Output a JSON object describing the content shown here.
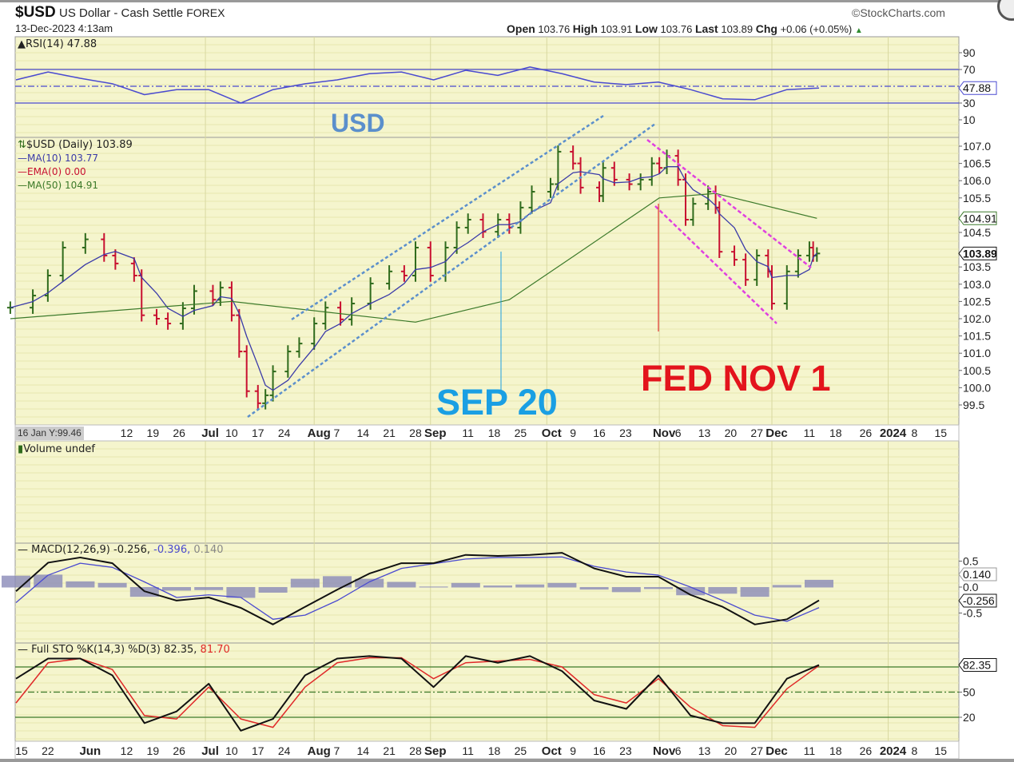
{
  "header": {
    "symbol": "$USD",
    "name": "US Dollar - Cash Settle",
    "exchange": "FOREX",
    "datetime": "13-Dec-2023 4:13am",
    "copyright": "©StockCharts.com",
    "open_label": "Open",
    "open": "103.76",
    "high_label": "High",
    "high": "103.91",
    "low_label": "Low",
    "low": "103.76",
    "last_label": "Last",
    "last": "103.89",
    "chg_label": "Chg",
    "chg": "+0.06 (+0.05%)",
    "chg_icon": "triangle-up-icon"
  },
  "annotations": {
    "usd": "USD",
    "sep20": "SEP 20",
    "fed": "FED NOV 1"
  },
  "colors": {
    "panel_bg": "#f5f5cd",
    "up": "#2f6b1c",
    "down": "#c81030",
    "ma10": "#3a3aa8",
    "ma50": "#3c7a2a",
    "rsi": "#4a4ad0",
    "macd": "#111111",
    "signal": "#4a4ad0",
    "hist": "#8a8ab8",
    "sto_k": "#111111",
    "sto_d": "#e02828",
    "sep_color": "#1a9fe3",
    "fed_color": "#e3141c",
    "channel_up": "#5b8fcc",
    "channel_down": "#e040e0"
  },
  "panels": {
    "rsi_label": "RSI(14) 47.88",
    "price_label": "$USD (Daily) 103.89",
    "ma10_label": "MA(10) 103.77",
    "ema_label": "EMA(0) 0.00",
    "ma50_label": "MA(50) 104.91",
    "crosshair_label": "16 Jan Y:99.46",
    "volume_label": "Volume undef",
    "macd_label": "MACD(12,26,9) -0.256,",
    "macd_signal_label": " -0.396,",
    "macd_hist_label": " 0.140",
    "sto_label": "Full STO %K(14,3) %D(3) 82.35,",
    "sto_d_label": " 81.70"
  },
  "chart_data": [
    {
      "type": "ohlc",
      "title": "$USD (Daily)",
      "ylim": [
        99.2,
        107.3
      ],
      "yticks": [
        "107.0",
        "106.5",
        "106.0",
        "105.5",
        "104.5",
        "103.5",
        "103.0",
        "102.5",
        "102.0",
        "101.5",
        "101.0",
        "100.5",
        "100.0",
        "99.5"
      ],
      "last_value": "103.89",
      "ma50_value": "104.91",
      "dates": [
        "2023-05-12",
        "2023-05-18",
        "2023-05-22",
        "2023-05-26",
        "2023-06-01",
        "2023-06-06",
        "2023-06-09",
        "2023-06-14",
        "2023-06-16",
        "2023-06-20",
        "2023-06-23",
        "2023-06-27",
        "2023-06-30",
        "2023-07-05",
        "2023-07-07",
        "2023-07-10",
        "2023-07-12",
        "2023-07-14",
        "2023-07-17",
        "2023-07-19",
        "2023-07-21",
        "2023-07-25",
        "2023-07-28",
        "2023-08-01",
        "2023-08-04",
        "2023-08-08",
        "2023-08-11",
        "2023-08-16",
        "2023-08-21",
        "2023-08-25",
        "2023-08-28",
        "2023-09-01",
        "2023-09-05",
        "2023-09-08",
        "2023-09-11",
        "2023-09-15",
        "2023-09-19",
        "2023-09-22",
        "2023-09-25",
        "2023-09-28",
        "2023-10-03",
        "2023-10-05",
        "2023-10-09",
        "2023-10-11",
        "2023-10-16",
        "2023-10-17",
        "2023-10-20",
        "2023-10-24",
        "2023-10-27",
        "2023-10-30",
        "2023-11-01",
        "2023-11-03",
        "2023-11-06",
        "2023-11-08",
        "2023-11-10",
        "2023-11-14",
        "2023-11-16",
        "2023-11-17",
        "2023-11-21",
        "2023-11-24",
        "2023-11-27",
        "2023-11-30",
        "2023-12-01",
        "2023-12-05",
        "2023-12-08",
        "2023-12-11",
        "2023-12-12",
        "2023-12-13"
      ],
      "close": [
        102.32,
        102.67,
        103.25,
        104.06,
        104.3,
        103.83,
        103.6,
        103.25,
        102.1,
        102.0,
        101.86,
        102.3,
        102.8,
        102.55,
        102.9,
        102.1,
        101.05,
        99.9,
        99.55,
        99.78,
        100.47,
        101.05,
        101.28,
        101.86,
        102.32,
        101.98,
        102.44,
        103.02,
        103.37,
        103.25,
        104.06,
        103.25,
        104.06,
        104.64,
        104.87,
        104.52,
        104.87,
        104.64,
        105.22,
        105.68,
        105.9,
        106.84,
        106.5,
        105.8,
        105.56,
        106.37,
        106.03,
        105.9,
        106.03,
        106.5,
        106.37,
        106.72,
        106.03,
        104.87,
        105.33,
        105.68,
        105.22,
        103.94,
        103.71,
        103.13,
        103.83,
        103.37,
        102.44,
        103.37,
        103.83,
        104.06,
        103.83,
        103.89
      ],
      "ma50": {
        "dates": [
          "2023-05-12",
          "2023-07-10",
          "2023-08-28",
          "2023-09-22",
          "2023-10-09",
          "2023-11-01",
          "2023-11-16",
          "2023-12-13"
        ],
        "values": [
          102.0,
          102.5,
          101.9,
          102.55,
          103.8,
          105.5,
          105.63,
          104.91
        ]
      }
    },
    {
      "type": "line",
      "title": "RSI(14)",
      "ylim": [
        0,
        100
      ],
      "yticks": [
        "90",
        "70",
        "30",
        "10"
      ],
      "levels": [
        70,
        50,
        30
      ],
      "last_value": "47.88",
      "start": "2023-05-12",
      "end": "2023-12-13",
      "values": [
        57.6,
        67,
        59.5,
        53,
        40,
        46,
        46,
        30,
        46,
        53,
        57.6,
        65,
        67,
        57.6,
        69,
        63,
        73,
        65,
        55,
        52,
        55,
        46,
        35,
        34,
        46,
        47.88
      ]
    },
    {
      "type": "line",
      "title": "MACD(12,26,9)",
      "ylim": [
        -1.0,
        0.95
      ],
      "yticks": [
        "0.5",
        "0.0",
        "-0.5"
      ],
      "start": "2023-05-12",
      "end": "2023-12-13",
      "labels": [
        "0.140",
        "-0.256",
        "-0.396"
      ],
      "macd": [
        -0.08,
        0.47,
        0.57,
        0.46,
        -0.08,
        -0.26,
        -0.2,
        -0.4,
        -0.72,
        -0.38,
        -0.05,
        0.26,
        0.46,
        0.46,
        0.62,
        0.6,
        0.62,
        0.66,
        0.36,
        0.2,
        0.2,
        -0.15,
        -0.38,
        -0.72,
        -0.62,
        -0.256
      ],
      "signal": [
        -0.3,
        0.23,
        0.46,
        0.38,
        0.1,
        -0.2,
        -0.15,
        -0.2,
        -0.62,
        -0.54,
        -0.26,
        0.1,
        0.36,
        0.45,
        0.54,
        0.57,
        0.57,
        0.58,
        0.4,
        0.29,
        0.23,
        0,
        -0.26,
        -0.54,
        -0.66,
        -0.396
      ]
    },
    {
      "type": "line",
      "title": "Full STO %K(14,3) %D(3)",
      "ylim": [
        0,
        100
      ],
      "yticks": [
        "50",
        "20"
      ],
      "levels": [
        80,
        50,
        20
      ],
      "last_value": "82.35",
      "start": "2023-05-12",
      "end": "2023-12-13",
      "k": [
        66,
        90,
        90,
        70,
        13,
        27,
        60,
        4,
        18,
        70,
        90,
        93,
        90,
        56,
        93,
        85,
        93,
        75,
        40,
        30,
        70,
        22,
        13,
        13,
        66,
        82.35
      ],
      "d": [
        37,
        85,
        90,
        77,
        22,
        18,
        56,
        18,
        8,
        56,
        85,
        91,
        91,
        66,
        85,
        87,
        89,
        80,
        47,
        37,
        66,
        32,
        10,
        8,
        54,
        81.7
      ]
    },
    {
      "type": "axis",
      "top_ticks": [
        [
          "12",
          "2023-06-12",
          0
        ],
        [
          "19",
          "2023-06-19",
          0
        ],
        [
          "26",
          "2023-06-26",
          0
        ],
        [
          "Jul",
          "2023-07-03",
          1
        ],
        [
          "10",
          "2023-07-10",
          0
        ],
        [
          "17",
          "2023-07-17",
          0
        ],
        [
          "24",
          "2023-07-24",
          0
        ],
        [
          "Aug",
          "2023-08-01",
          1
        ],
        [
          "7",
          "2023-08-07",
          0
        ],
        [
          "14",
          "2023-08-14",
          0
        ],
        [
          "21",
          "2023-08-21",
          0
        ],
        [
          "28",
          "2023-08-28",
          0
        ],
        [
          "Sep",
          "2023-09-01",
          1
        ],
        [
          "11",
          "2023-09-11",
          0
        ],
        [
          "18",
          "2023-09-18",
          0
        ],
        [
          "25",
          "2023-09-25",
          0
        ],
        [
          "Oct",
          "2023-10-02",
          1
        ],
        [
          "9",
          "2023-10-09",
          0
        ],
        [
          "16",
          "2023-10-16",
          0
        ],
        [
          "23",
          "2023-10-23",
          0
        ],
        [
          "Nov",
          "2023-11-01",
          1
        ],
        [
          "6",
          "2023-11-06",
          0
        ],
        [
          "13",
          "2023-11-13",
          0
        ],
        [
          "20",
          "2023-11-20",
          0
        ],
        [
          "27",
          "2023-11-27",
          0
        ],
        [
          "Dec",
          "2023-12-01",
          1
        ],
        [
          "11",
          "2023-12-11",
          0
        ],
        [
          "18",
          "2023-12-18",
          0
        ],
        [
          "26",
          "2023-12-26",
          0
        ],
        [
          "2024",
          "2024-01-01",
          1
        ],
        [
          "8",
          "2024-01-08",
          0
        ],
        [
          "15",
          "2024-01-15",
          0
        ]
      ],
      "bottom_extra": [
        [
          "15",
          "2023-05-15",
          0
        ],
        [
          "22",
          "2023-05-22",
          0
        ],
        [
          "Jun",
          "2023-06-01",
          1
        ]
      ]
    }
  ]
}
